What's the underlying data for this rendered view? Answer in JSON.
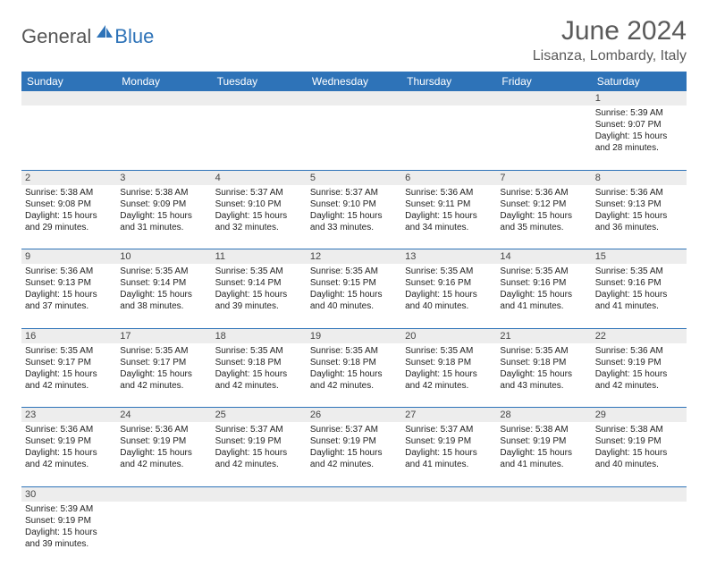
{
  "brand": {
    "main": "General",
    "sub": "Blue"
  },
  "title": "June 2024",
  "location": "Lisanza, Lombardy, Italy",
  "colors": {
    "header_bg": "#2e73b8",
    "header_text": "#ffffff",
    "daynum_bg": "#ededed",
    "row_border": "#2e73b8",
    "title_color": "#5a5a5a"
  },
  "day_headers": [
    "Sunday",
    "Monday",
    "Tuesday",
    "Wednesday",
    "Thursday",
    "Friday",
    "Saturday"
  ],
  "weeks": [
    {
      "nums": [
        "",
        "",
        "",
        "",
        "",
        "",
        "1"
      ],
      "cells": [
        null,
        null,
        null,
        null,
        null,
        null,
        {
          "sunrise": "Sunrise: 5:39 AM",
          "sunset": "Sunset: 9:07 PM",
          "daylight1": "Daylight: 15 hours",
          "daylight2": "and 28 minutes."
        }
      ]
    },
    {
      "nums": [
        "2",
        "3",
        "4",
        "5",
        "6",
        "7",
        "8"
      ],
      "cells": [
        {
          "sunrise": "Sunrise: 5:38 AM",
          "sunset": "Sunset: 9:08 PM",
          "daylight1": "Daylight: 15 hours",
          "daylight2": "and 29 minutes."
        },
        {
          "sunrise": "Sunrise: 5:38 AM",
          "sunset": "Sunset: 9:09 PM",
          "daylight1": "Daylight: 15 hours",
          "daylight2": "and 31 minutes."
        },
        {
          "sunrise": "Sunrise: 5:37 AM",
          "sunset": "Sunset: 9:10 PM",
          "daylight1": "Daylight: 15 hours",
          "daylight2": "and 32 minutes."
        },
        {
          "sunrise": "Sunrise: 5:37 AM",
          "sunset": "Sunset: 9:10 PM",
          "daylight1": "Daylight: 15 hours",
          "daylight2": "and 33 minutes."
        },
        {
          "sunrise": "Sunrise: 5:36 AM",
          "sunset": "Sunset: 9:11 PM",
          "daylight1": "Daylight: 15 hours",
          "daylight2": "and 34 minutes."
        },
        {
          "sunrise": "Sunrise: 5:36 AM",
          "sunset": "Sunset: 9:12 PM",
          "daylight1": "Daylight: 15 hours",
          "daylight2": "and 35 minutes."
        },
        {
          "sunrise": "Sunrise: 5:36 AM",
          "sunset": "Sunset: 9:13 PM",
          "daylight1": "Daylight: 15 hours",
          "daylight2": "and 36 minutes."
        }
      ]
    },
    {
      "nums": [
        "9",
        "10",
        "11",
        "12",
        "13",
        "14",
        "15"
      ],
      "cells": [
        {
          "sunrise": "Sunrise: 5:36 AM",
          "sunset": "Sunset: 9:13 PM",
          "daylight1": "Daylight: 15 hours",
          "daylight2": "and 37 minutes."
        },
        {
          "sunrise": "Sunrise: 5:35 AM",
          "sunset": "Sunset: 9:14 PM",
          "daylight1": "Daylight: 15 hours",
          "daylight2": "and 38 minutes."
        },
        {
          "sunrise": "Sunrise: 5:35 AM",
          "sunset": "Sunset: 9:14 PM",
          "daylight1": "Daylight: 15 hours",
          "daylight2": "and 39 minutes."
        },
        {
          "sunrise": "Sunrise: 5:35 AM",
          "sunset": "Sunset: 9:15 PM",
          "daylight1": "Daylight: 15 hours",
          "daylight2": "and 40 minutes."
        },
        {
          "sunrise": "Sunrise: 5:35 AM",
          "sunset": "Sunset: 9:16 PM",
          "daylight1": "Daylight: 15 hours",
          "daylight2": "and 40 minutes."
        },
        {
          "sunrise": "Sunrise: 5:35 AM",
          "sunset": "Sunset: 9:16 PM",
          "daylight1": "Daylight: 15 hours",
          "daylight2": "and 41 minutes."
        },
        {
          "sunrise": "Sunrise: 5:35 AM",
          "sunset": "Sunset: 9:16 PM",
          "daylight1": "Daylight: 15 hours",
          "daylight2": "and 41 minutes."
        }
      ]
    },
    {
      "nums": [
        "16",
        "17",
        "18",
        "19",
        "20",
        "21",
        "22"
      ],
      "cells": [
        {
          "sunrise": "Sunrise: 5:35 AM",
          "sunset": "Sunset: 9:17 PM",
          "daylight1": "Daylight: 15 hours",
          "daylight2": "and 42 minutes."
        },
        {
          "sunrise": "Sunrise: 5:35 AM",
          "sunset": "Sunset: 9:17 PM",
          "daylight1": "Daylight: 15 hours",
          "daylight2": "and 42 minutes."
        },
        {
          "sunrise": "Sunrise: 5:35 AM",
          "sunset": "Sunset: 9:18 PM",
          "daylight1": "Daylight: 15 hours",
          "daylight2": "and 42 minutes."
        },
        {
          "sunrise": "Sunrise: 5:35 AM",
          "sunset": "Sunset: 9:18 PM",
          "daylight1": "Daylight: 15 hours",
          "daylight2": "and 42 minutes."
        },
        {
          "sunrise": "Sunrise: 5:35 AM",
          "sunset": "Sunset: 9:18 PM",
          "daylight1": "Daylight: 15 hours",
          "daylight2": "and 42 minutes."
        },
        {
          "sunrise": "Sunrise: 5:35 AM",
          "sunset": "Sunset: 9:18 PM",
          "daylight1": "Daylight: 15 hours",
          "daylight2": "and 43 minutes."
        },
        {
          "sunrise": "Sunrise: 5:36 AM",
          "sunset": "Sunset: 9:19 PM",
          "daylight1": "Daylight: 15 hours",
          "daylight2": "and 42 minutes."
        }
      ]
    },
    {
      "nums": [
        "23",
        "24",
        "25",
        "26",
        "27",
        "28",
        "29"
      ],
      "cells": [
        {
          "sunrise": "Sunrise: 5:36 AM",
          "sunset": "Sunset: 9:19 PM",
          "daylight1": "Daylight: 15 hours",
          "daylight2": "and 42 minutes."
        },
        {
          "sunrise": "Sunrise: 5:36 AM",
          "sunset": "Sunset: 9:19 PM",
          "daylight1": "Daylight: 15 hours",
          "daylight2": "and 42 minutes."
        },
        {
          "sunrise": "Sunrise: 5:37 AM",
          "sunset": "Sunset: 9:19 PM",
          "daylight1": "Daylight: 15 hours",
          "daylight2": "and 42 minutes."
        },
        {
          "sunrise": "Sunrise: 5:37 AM",
          "sunset": "Sunset: 9:19 PM",
          "daylight1": "Daylight: 15 hours",
          "daylight2": "and 42 minutes."
        },
        {
          "sunrise": "Sunrise: 5:37 AM",
          "sunset": "Sunset: 9:19 PM",
          "daylight1": "Daylight: 15 hours",
          "daylight2": "and 41 minutes."
        },
        {
          "sunrise": "Sunrise: 5:38 AM",
          "sunset": "Sunset: 9:19 PM",
          "daylight1": "Daylight: 15 hours",
          "daylight2": "and 41 minutes."
        },
        {
          "sunrise": "Sunrise: 5:38 AM",
          "sunset": "Sunset: 9:19 PM",
          "daylight1": "Daylight: 15 hours",
          "daylight2": "and 40 minutes."
        }
      ]
    },
    {
      "nums": [
        "30",
        "",
        "",
        "",
        "",
        "",
        ""
      ],
      "cells": [
        {
          "sunrise": "Sunrise: 5:39 AM",
          "sunset": "Sunset: 9:19 PM",
          "daylight1": "Daylight: 15 hours",
          "daylight2": "and 39 minutes."
        },
        null,
        null,
        null,
        null,
        null,
        null
      ]
    }
  ]
}
